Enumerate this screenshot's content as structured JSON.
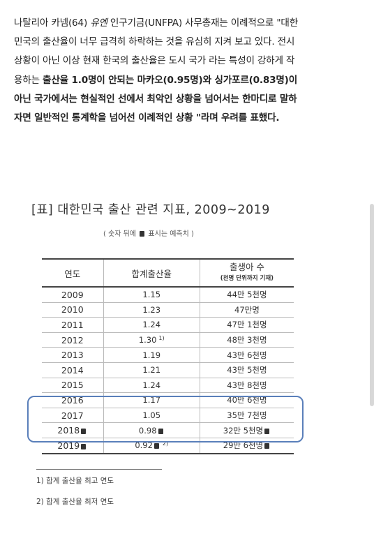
{
  "paragraph": {
    "l1a": "나탈리아 카넴(64) ",
    "l1b": "유엔",
    "l1c": " 인구기금(UNFPA) 사무총재는 이례적으로 \"대한",
    "l2": "민국의 출산율이 너무 급격히 하락하는 것을 유심히 지켜 보고 있다. 전시",
    "l3": "상황이 아닌 이상 현재 한국의 출산율은 도시 국가 라는 특성이 강하게 작",
    "l4a": "용하는   ",
    "l4b": "출산율 1.0명이 안되는  마카오(0.95명)와 싱가포르(0.83명)이",
    "l5": "아닌 국가에서는  현실적인 선에서 최악인 상황을 넘어서는 한마디로 말하",
    "l6": "자면 일반적인 통계학을 넘어선 이례적인 상황 \"라며 우려를 표했다."
  },
  "table_title": "[표] 대한민국 출산 관련 지표, 2009~2019",
  "note": {
    "prefix": "( 숫자 뒤에 ",
    "suffix": " 표시는 예측치 )"
  },
  "table": {
    "headers": {
      "year": "연도",
      "tfr": "합계출산율",
      "births": "출생아 수",
      "births_sub": "(천명 단위까지 기재)"
    },
    "rows": [
      {
        "year": "2009",
        "tfr": "1.15",
        "births": "44만 5천명"
      },
      {
        "year": "2010",
        "tfr": "1.23",
        "births": "47만명"
      },
      {
        "year": "2011",
        "tfr": "1.24",
        "births": "47만 1천명"
      },
      {
        "year": "2012",
        "tfr": "1.30",
        "tfr_sup": "1)",
        "births": "48만 3천명"
      },
      {
        "year": "2013",
        "tfr": "1.19",
        "births": "43만 6천명"
      },
      {
        "year": "2014",
        "tfr": "1.21",
        "births": "43만 5천명"
      },
      {
        "year": "2015",
        "tfr": "1.24",
        "births": "43만 8천명"
      },
      {
        "year": "2016",
        "tfr": "1.17",
        "births": "40만 6천명"
      },
      {
        "year": "2017",
        "tfr": "1.05",
        "births": "35만 7천명"
      },
      {
        "year": "2018",
        "tfr": "0.98",
        "births": "32만 5천명"
      },
      {
        "year": "2019",
        "tfr": "0.92",
        "tfr_sup": "2)",
        "births": "29만 6천명"
      }
    ]
  },
  "footnotes": {
    "f1": "1) 합계 출산율 최고 연도",
    "f2": "2) 합계 출산율 최저 연도"
  },
  "colors": {
    "highlight_border": "#5a7fba",
    "text": "#222222"
  },
  "icons": {
    "estimate_marker": "filled-square-marker"
  }
}
